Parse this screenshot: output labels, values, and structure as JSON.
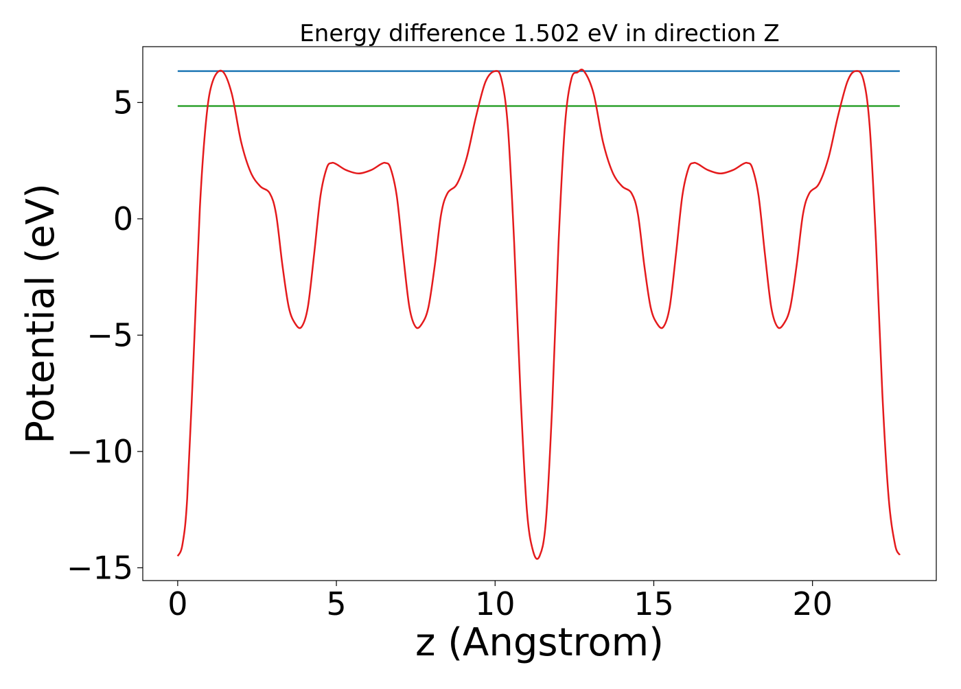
{
  "chart_data": {
    "type": "line",
    "title": "Energy difference 1.502 eV in direction Z",
    "xlabel": "z (Angstrom)",
    "ylabel": "Potential (eV)",
    "xlim": [
      -1.1,
      23.9
    ],
    "ylim": [
      -15.55,
      7.4
    ],
    "xticks": [
      0,
      5,
      10,
      15,
      20
    ],
    "xtick_labels": [
      "0",
      "5",
      "10",
      "15",
      "20"
    ],
    "yticks": [
      5,
      0,
      -5,
      -10,
      -15
    ],
    "ytick_labels": [
      "5",
      "0",
      "−5",
      "−10",
      "−15"
    ],
    "grid": false,
    "legend": "none",
    "series": [
      {
        "color": "#1f77b4",
        "style": "horizontal",
        "x": [
          0,
          22.75
        ],
        "y": [
          6.35,
          6.35
        ]
      },
      {
        "color": "#2ca02c",
        "style": "horizontal",
        "x": [
          0,
          22.75
        ],
        "y": [
          4.85,
          4.85
        ]
      },
      {
        "color": "#e41a1c",
        "style": "curve",
        "x": [
          0,
          0.15,
          0.3,
          0.5,
          0.7,
          0.9,
          1.1,
          1.4,
          1.7,
          2.0,
          2.3,
          2.6,
          2.9,
          3.1,
          3.3,
          3.5,
          3.7,
          3.9,
          4.1,
          4.3,
          4.5,
          4.7,
          4.85,
          5.0,
          5.3,
          5.7,
          6.1,
          6.4,
          6.55,
          6.7,
          6.9,
          7.1,
          7.3,
          7.5,
          7.7,
          7.9,
          8.1,
          8.3,
          8.5,
          8.8,
          9.1,
          9.4,
          9.7,
          10.0,
          10.2,
          10.4,
          10.6,
          10.8,
          11.0,
          11.2,
          11.4,
          11.6,
          11.8,
          12.0,
          12.2,
          12.4,
          12.6,
          12.8,
          13.1,
          13.4,
          13.7,
          14.0,
          14.3,
          14.5,
          14.7,
          14.9,
          15.1,
          15.3,
          15.5,
          15.7,
          15.9,
          16.1,
          16.25,
          16.4,
          16.7,
          17.1,
          17.5,
          17.8,
          17.95,
          18.1,
          18.3,
          18.5,
          18.7,
          18.9,
          19.1,
          19.3,
          19.5,
          19.7,
          19.9,
          20.2,
          20.5,
          20.8,
          21.1,
          21.35,
          21.6,
          21.8,
          22.0,
          22.2,
          22.4,
          22.6,
          22.75
        ],
        "y": [
          -14.5,
          -14.0,
          -12.0,
          -6.0,
          0.5,
          4.3,
          5.9,
          6.35,
          5.4,
          3.3,
          2.0,
          1.4,
          1.1,
          0.2,
          -2.0,
          -3.8,
          -4.5,
          -4.65,
          -3.8,
          -1.5,
          1.0,
          2.2,
          2.4,
          2.35,
          2.1,
          1.95,
          2.1,
          2.35,
          2.4,
          2.2,
          1.0,
          -1.5,
          -3.8,
          -4.65,
          -4.5,
          -3.8,
          -2.0,
          0.2,
          1.1,
          1.5,
          2.6,
          4.4,
          5.9,
          6.35,
          6.0,
          4.0,
          -1.0,
          -7.5,
          -12.5,
          -14.3,
          -14.5,
          -13.0,
          -8.0,
          -1.0,
          4.0,
          6.0,
          6.3,
          6.35,
          5.4,
          3.3,
          2.0,
          1.4,
          1.1,
          0.2,
          -2.0,
          -3.8,
          -4.5,
          -4.65,
          -3.8,
          -1.5,
          1.0,
          2.2,
          2.4,
          2.35,
          2.1,
          1.95,
          2.1,
          2.35,
          2.4,
          2.2,
          1.0,
          -1.5,
          -3.8,
          -4.65,
          -4.5,
          -3.8,
          -2.0,
          0.2,
          1.1,
          1.5,
          2.6,
          4.4,
          5.9,
          6.35,
          6.0,
          4.0,
          -1.0,
          -7.5,
          -12.0,
          -14.0,
          -14.45
        ]
      }
    ]
  }
}
